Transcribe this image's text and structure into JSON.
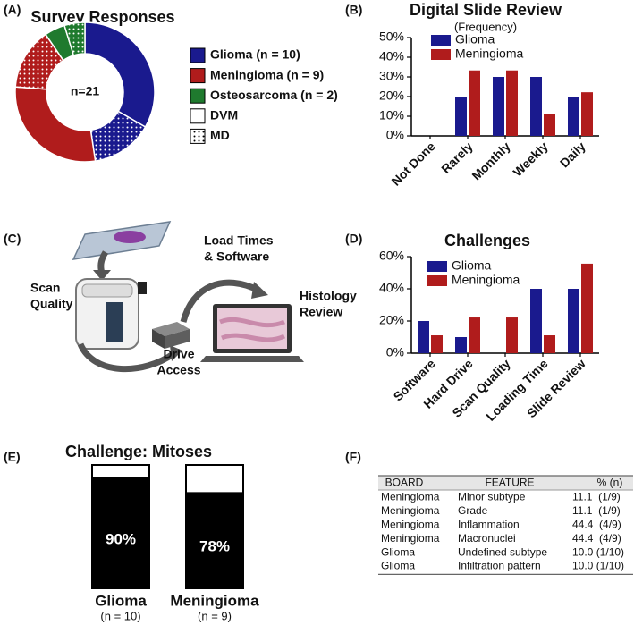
{
  "chart_data": [
    {
      "type": "pie",
      "panel": "(A)",
      "title": "Survey Responses",
      "center_label": "n=21",
      "categories": [
        "Glioma (n = 10)",
        "Meningioma (n = 9)",
        "Osteosarcoma (n = 2)"
      ],
      "colors": [
        "#1a1a8e",
        "#b01c1c",
        "#1f7a2e"
      ],
      "series": [
        {
          "name": "DVM",
          "pattern": "solid",
          "values": [
            7,
            6,
            1
          ]
        },
        {
          "name": "MD",
          "pattern": "dots",
          "values": [
            3,
            3,
            1
          ]
        }
      ]
    },
    {
      "type": "bar",
      "panel": "(B)",
      "title": "Digital Slide Review",
      "subtitle": "(Frequency)",
      "categories": [
        "Not Done",
        "Rarely",
        "Monthly",
        "Weekly",
        "Daily"
      ],
      "series": [
        {
          "name": "Glioma",
          "color": "#1a1a8e",
          "values": [
            0,
            20,
            30,
            30,
            20
          ]
        },
        {
          "name": "Meningioma",
          "color": "#b01c1c",
          "values": [
            0,
            33.3,
            33.3,
            11.1,
            22.2
          ]
        }
      ],
      "ylim": [
        0,
        50
      ],
      "yticks": [
        {
          "value": 0,
          "label": "0%"
        },
        {
          "value": 10,
          "label": "10%"
        },
        {
          "value": 20,
          "label": "20%"
        },
        {
          "value": 30,
          "label": "30%"
        },
        {
          "value": 40,
          "label": "40%"
        },
        {
          "value": 50,
          "label": "50%"
        }
      ],
      "legend": "top-left"
    },
    {
      "type": "bar",
      "panel": "(D)",
      "title": "Challenges",
      "categories": [
        "Software",
        "Hard Drive",
        "Scan Quality",
        "Loading Time",
        "Slide Review"
      ],
      "series": [
        {
          "name": "Glioma",
          "color": "#1a1a8e",
          "values": [
            20,
            10,
            0,
            40,
            40
          ]
        },
        {
          "name": "Meningioma",
          "color": "#b01c1c",
          "values": [
            11.1,
            22.2,
            22.2,
            11.1,
            55.6
          ]
        }
      ],
      "ylim": [
        0,
        60
      ],
      "yticks": [
        {
          "value": 0,
          "label": "0%"
        },
        {
          "value": 20,
          "label": "20%"
        },
        {
          "value": 40,
          "label": "40%"
        },
        {
          "value": 60,
          "label": "60%"
        }
      ],
      "legend": "top-left"
    },
    {
      "type": "stacked-bar",
      "panel": "(E)",
      "title": "Challenge: Mitoses",
      "categories": [
        "Glioma",
        "Meningioma"
      ],
      "sublabels": [
        "(n = 10)",
        "(n = 9)"
      ],
      "values": [
        90,
        78
      ],
      "value_labels": [
        "90%",
        "78%"
      ],
      "color": "#000000",
      "ylim": [
        0,
        100
      ]
    }
  ],
  "diagram": {
    "panel": "(C)",
    "labels": [
      [
        "Load Times",
        "& Software"
      ],
      [
        "Scan",
        "Quality"
      ],
      [
        "Histology",
        "Review"
      ],
      [
        "Drive",
        "Access"
      ]
    ]
  },
  "table": {
    "panel": "(F)",
    "header": [
      "BOARD",
      "FEATURE",
      "% (n)"
    ],
    "rows": [
      [
        "Meningioma",
        "Minor subtype",
        "11.1  (1/9)"
      ],
      [
        "Meningioma",
        "Grade",
        "11.1  (1/9)"
      ],
      [
        "Meningioma",
        "Inflammation",
        "44.4  (4/9)"
      ],
      [
        "Meningioma",
        "Macronuclei",
        "44.4  (4/9)"
      ],
      [
        "Glioma",
        "Undefined subtype",
        "10.0 (1/10)"
      ],
      [
        "Glioma",
        "Infiltration pattern",
        "10.0 (1/10)"
      ]
    ]
  }
}
